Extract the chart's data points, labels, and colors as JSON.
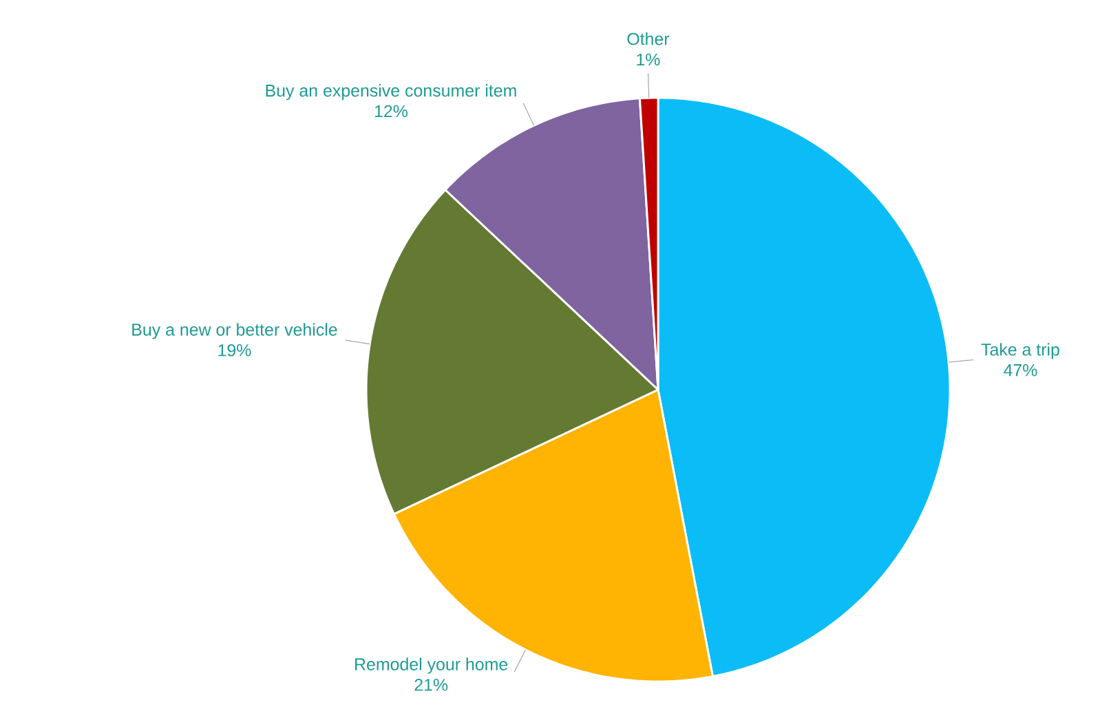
{
  "chart_data": {
    "type": "pie",
    "categories": [
      "Take a trip",
      "Remodel your home",
      "Buy a new or better vehicle",
      "Buy an expensive consumer item",
      "Other"
    ],
    "values": [
      47,
      21,
      19,
      12,
      1
    ],
    "value_labels": [
      "47%",
      "21%",
      "19%",
      "12%",
      "1%"
    ],
    "colors": [
      "#0bbcf7",
      "#ffb302",
      "#647a33",
      "#7f64a0",
      "#c00000"
    ]
  }
}
